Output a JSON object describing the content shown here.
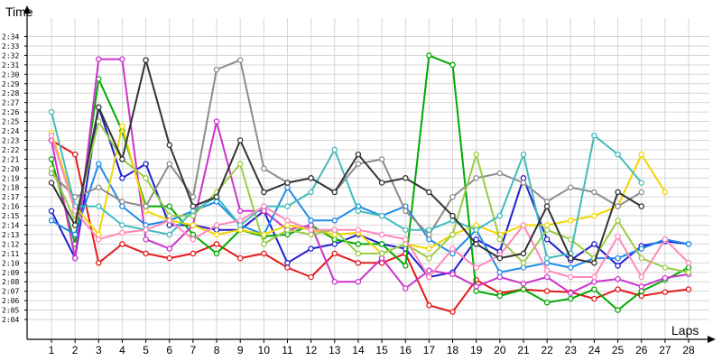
{
  "chart_data": {
    "type": "line",
    "ylabel": "Time",
    "xlabel": "Laps",
    "x": [
      1,
      2,
      3,
      4,
      5,
      6,
      7,
      8,
      9,
      10,
      11,
      12,
      13,
      14,
      15,
      16,
      17,
      18,
      19,
      20,
      21,
      22,
      23,
      24,
      25,
      26,
      27,
      28
    ],
    "x_tick_labels": [
      "1",
      "2",
      "3",
      "4",
      "5",
      "6",
      "7",
      "8",
      "9",
      "10",
      "11",
      "12",
      "13",
      "14",
      "15",
      "16",
      "17",
      "18",
      "19",
      "20",
      "21",
      "22",
      "23",
      "24",
      "25",
      "26",
      "27",
      "28"
    ],
    "y_unit": "seconds (m:ss labels)",
    "y_ticks": [
      124,
      125,
      126,
      127,
      128,
      129,
      130,
      131,
      132,
      133,
      134,
      135,
      136,
      137,
      138,
      139,
      140,
      141,
      142,
      143,
      144,
      145,
      146,
      147,
      148,
      149,
      150,
      151,
      152,
      153,
      154
    ],
    "y_tick_labels": [
      "2:04",
      "2:05",
      "2:06",
      "2:07",
      "2:08",
      "2:09",
      "2:10",
      "2:11",
      "2:12",
      "2:13",
      "2:14",
      "2:15",
      "2:16",
      "2:17",
      "2:18",
      "2:19",
      "2:20",
      "2:21",
      "2:22",
      "2:23",
      "2:24",
      "2:25",
      "2:26",
      "2:27",
      "2:28",
      "2:29",
      "2:30",
      "2:31",
      "2:32",
      "2:33",
      "2:34"
    ],
    "ylim": [
      122.5,
      156
    ],
    "grid": true,
    "legend": "none",
    "series": [
      {
        "color": "#e41a1c",
        "values": [
          143,
          141.5,
          130,
          132,
          131,
          130.5,
          131,
          132,
          130.5,
          131,
          129.5,
          128.5,
          131,
          130,
          130,
          131,
          125.5,
          124.8,
          128.2,
          126.8,
          127.2,
          127,
          126.9,
          126.2,
          127.2,
          126.5,
          126.9,
          127.2
        ]
      },
      {
        "color": "#1f1fd0",
        "values": [
          135.5,
          130.5,
          146.5,
          139,
          140.5,
          134,
          134,
          133.5,
          133.5,
          135.5,
          130,
          131.5,
          132,
          133,
          132,
          131.5,
          128.5,
          129,
          132.5,
          131.2,
          139,
          132.5,
          130.3,
          132,
          129.7,
          131.8,
          132.3,
          132
        ]
      },
      {
        "color": "#00aa00",
        "values": [
          141,
          132,
          149.5,
          144,
          136,
          136,
          133,
          131,
          133.5,
          132.8,
          133,
          134,
          132.5,
          132,
          132,
          129.7,
          152,
          151,
          127,
          126.5,
          127.2,
          125.8,
          126.2,
          127.2,
          125,
          127,
          128.2,
          129.5
        ]
      },
      {
        "color": "#cc33cc",
        "values": [
          143,
          130.5,
          151.6,
          151.6,
          132.5,
          131.5,
          134,
          145,
          135.5,
          135.5,
          133.5,
          134,
          128,
          128,
          130.5,
          127.3,
          129.2,
          128.8,
          127.5,
          128.5,
          127.8,
          128.5,
          126.8,
          128,
          128.3,
          127.5,
          128.4,
          128.8
        ]
      },
      {
        "color": "#1f8ae8",
        "values": [
          134.5,
          133,
          140.5,
          136,
          134,
          134.5,
          135.5,
          136.5,
          134,
          133,
          138,
          134.5,
          134.5,
          136,
          135,
          136,
          132.5,
          131,
          133.5,
          129,
          129.5,
          130,
          129.5,
          130.5,
          130.5,
          131.5,
          132.5,
          132
        ]
      },
      {
        "color": "#f2d600",
        "values": [
          143.8,
          136,
          133,
          144.5,
          135.5,
          134.5,
          134,
          133,
          133.5,
          133,
          134,
          133.5,
          133,
          133.2,
          131,
          132,
          131.5,
          133,
          134,
          133,
          134,
          134,
          134.5,
          135,
          136,
          141.5,
          137.5,
          null
        ]
      },
      {
        "color": "#8c8c8c",
        "values": [
          139.5,
          137,
          138,
          136.5,
          136,
          140.5,
          137,
          150.5,
          151.5,
          140,
          138.5,
          139,
          137.5,
          140.5,
          141,
          135.5,
          133,
          137,
          139,
          139.5,
          138.5,
          136.5,
          138,
          137.5,
          136,
          137.5,
          null,
          null
        ]
      },
      {
        "color": "#99cc44",
        "values": [
          140,
          134.5,
          145,
          141,
          139,
          135,
          135,
          137.5,
          140.5,
          132,
          133.5,
          133,
          133.5,
          131,
          131,
          132,
          130.5,
          133,
          141.5,
          132.5,
          130,
          133.5,
          132.5,
          130.5,
          134.5,
          130.5,
          129.5,
          129
        ]
      },
      {
        "color": "#44bbbb",
        "values": [
          146,
          136,
          136,
          134,
          133.5,
          133,
          135.5,
          137,
          134,
          136,
          136,
          137.5,
          142,
          135.5,
          135,
          133.5,
          133.5,
          134.5,
          133.5,
          135,
          141.5,
          130.5,
          131,
          143.5,
          141.5,
          138.5,
          null,
          null
        ]
      },
      {
        "color": "#ff88bb",
        "values": [
          143.5,
          135.5,
          132.5,
          133.2,
          133.5,
          134.5,
          132.5,
          134,
          134.5,
          136,
          134.5,
          133.5,
          133.5,
          133.5,
          133,
          132.5,
          128.5,
          131.5,
          129.5,
          130.8,
          134,
          129.2,
          128.5,
          128.5,
          132.8,
          128.5,
          132.5,
          130
        ]
      },
      {
        "color": "#333333",
        "values": [
          138.5,
          134,
          146.5,
          141,
          151.5,
          142.5,
          136,
          137,
          143,
          137.5,
          138.5,
          139,
          137.5,
          141.5,
          138.5,
          139,
          137.5,
          135,
          132,
          130.5,
          131,
          136,
          130.5,
          130,
          137.5,
          136,
          null,
          null
        ]
      }
    ]
  }
}
